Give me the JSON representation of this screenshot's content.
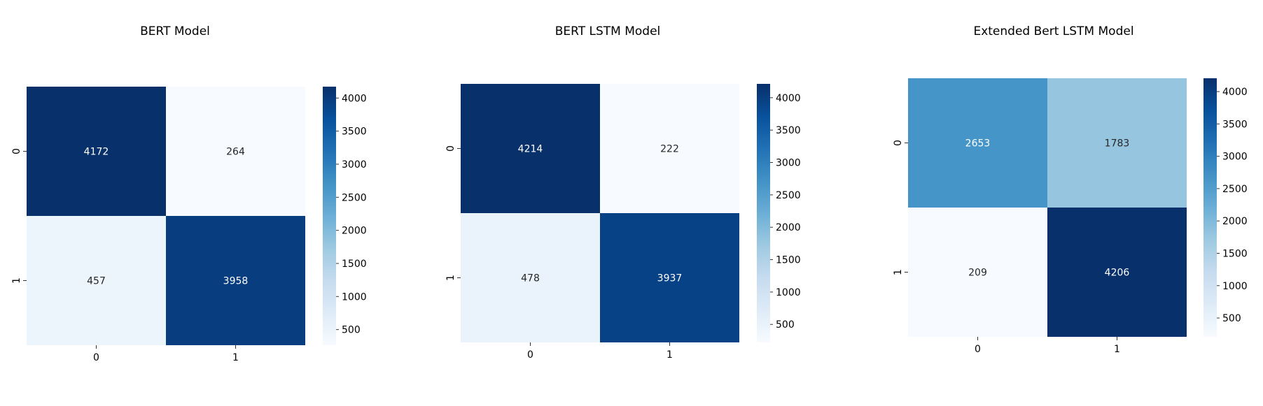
{
  "chart_data": [
    {
      "type": "heatmap",
      "title": "BERT Model",
      "x_tick_labels": [
        "0",
        "1"
      ],
      "y_tick_labels": [
        "0",
        "1"
      ],
      "values": [
        [
          4172,
          264
        ],
        [
          457,
          3958
        ]
      ],
      "colorbar": {
        "ticks": [
          500,
          1000,
          1500,
          2000,
          2500,
          3000,
          3500,
          4000
        ],
        "range": [
          264,
          4172
        ]
      },
      "colormap": "Blues"
    },
    {
      "type": "heatmap",
      "title": "BERT LSTM Model",
      "x_tick_labels": [
        "0",
        "1"
      ],
      "y_tick_labels": [
        "0",
        "1"
      ],
      "values": [
        [
          4214,
          222
        ],
        [
          478,
          3937
        ]
      ],
      "colorbar": {
        "ticks": [
          500,
          1000,
          1500,
          2000,
          2500,
          3000,
          3500,
          4000
        ],
        "range": [
          222,
          4214
        ]
      },
      "colormap": "Blues"
    },
    {
      "type": "heatmap",
      "title": "Extended Bert LSTM Model",
      "x_tick_labels": [
        "0",
        "1"
      ],
      "y_tick_labels": [
        "0",
        "1"
      ],
      "values": [
        [
          2653,
          1783
        ],
        [
          209,
          4206
        ]
      ],
      "colorbar": {
        "ticks": [
          500,
          1000,
          1500,
          2000,
          2500,
          3000,
          3500,
          4000
        ],
        "range": [
          209,
          4206
        ]
      },
      "colormap": "Blues"
    }
  ],
  "colors": {
    "blues_scale": [
      "#f7fbff",
      "#deebf7",
      "#c6dbef",
      "#9ecae1",
      "#6baed6",
      "#4292c6",
      "#2171b5",
      "#08519c",
      "#08306b"
    ],
    "text_dark": "#262626",
    "text_light": "#ffffff"
  }
}
